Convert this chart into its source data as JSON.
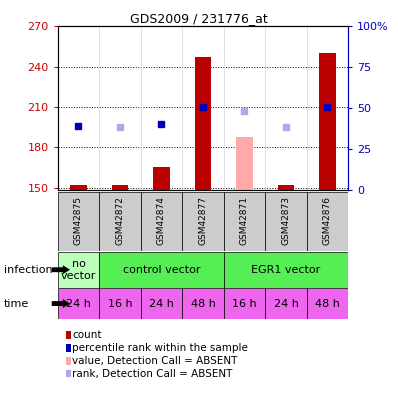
{
  "title": "GDS2009 / 231776_at",
  "samples": [
    "GSM42875",
    "GSM42872",
    "GSM42874",
    "GSM42877",
    "GSM42871",
    "GSM42873",
    "GSM42876"
  ],
  "bar_values": [
    152,
    152,
    165,
    247,
    188,
    152,
    250
  ],
  "bar_absent": [
    false,
    false,
    false,
    false,
    true,
    false,
    false
  ],
  "rank_values": [
    196,
    195,
    197,
    210,
    207,
    195,
    210
  ],
  "rank_absent": [
    false,
    true,
    false,
    false,
    true,
    true,
    false
  ],
  "infection_groups": [
    {
      "label": "no\nvector",
      "start": 0,
      "end": 1,
      "color": "#bbffbb"
    },
    {
      "label": "control vector",
      "start": 1,
      "end": 4,
      "color": "#55ee55"
    },
    {
      "label": "EGR1 vector",
      "start": 4,
      "end": 7,
      "color": "#55ee55"
    }
  ],
  "time_labels": [
    "24 h",
    "16 h",
    "24 h",
    "48 h",
    "16 h",
    "24 h",
    "48 h"
  ],
  "time_color": "#ee66ee",
  "ylim_left": [
    148,
    270
  ],
  "ylim_right": [
    0,
    100
  ],
  "yticks_left": [
    150,
    180,
    210,
    240,
    270
  ],
  "yticks_right": [
    0,
    25,
    50,
    75,
    100
  ],
  "bar_color_present": "#bb0000",
  "bar_color_absent": "#ffaaaa",
  "rank_color_present": "#0000bb",
  "rank_color_absent": "#aaaaee",
  "plot_bg": "#ffffff",
  "sample_box_color": "#cccccc",
  "legend_items": [
    {
      "label": "count",
      "color": "#bb0000"
    },
    {
      "label": "percentile rank within the sample",
      "color": "#0000bb"
    },
    {
      "label": "value, Detection Call = ABSENT",
      "color": "#ffaaaa"
    },
    {
      "label": "rank, Detection Call = ABSENT",
      "color": "#aaaaee"
    }
  ],
  "bar_width": 0.4
}
